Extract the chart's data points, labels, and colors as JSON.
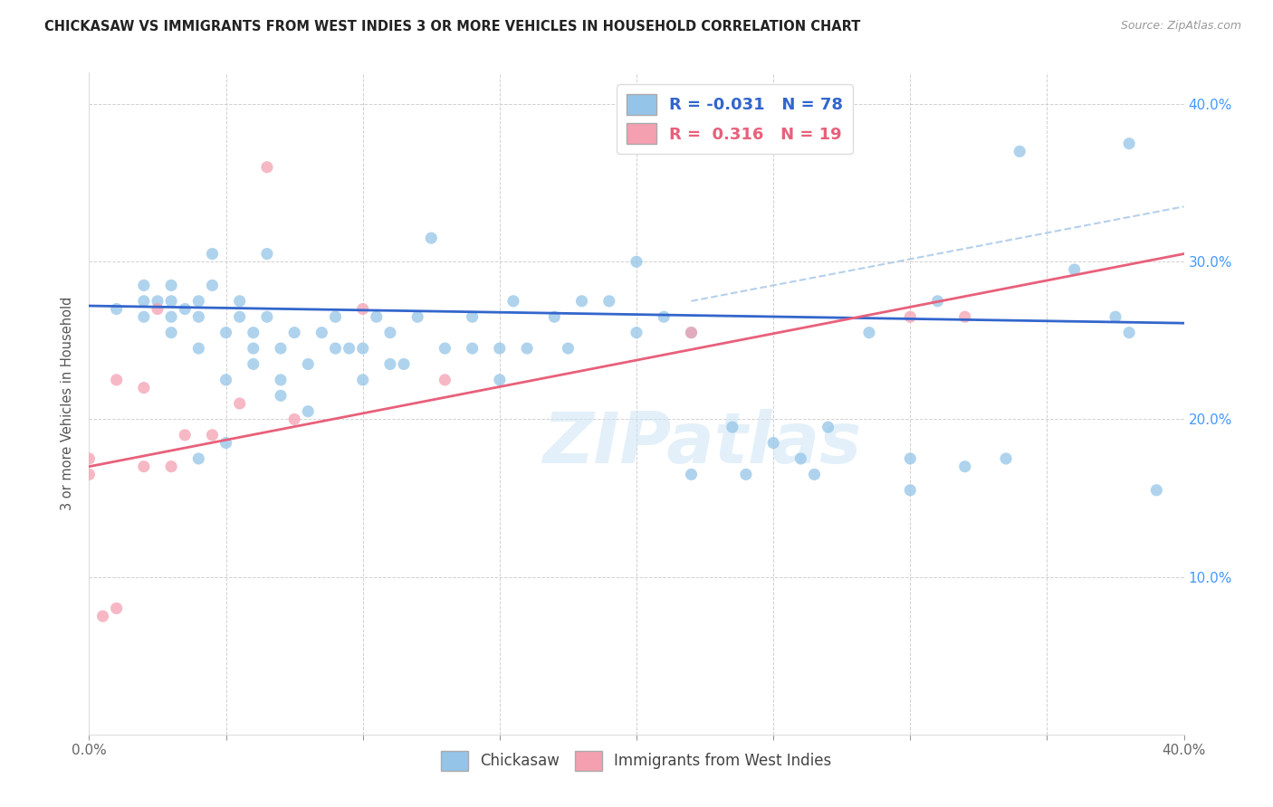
{
  "title": "CHICKASAW VS IMMIGRANTS FROM WEST INDIES 3 OR MORE VEHICLES IN HOUSEHOLD CORRELATION CHART",
  "source": "Source: ZipAtlas.com",
  "ylabel": "3 or more Vehicles in Household",
  "xlabel_chickasaw": "Chickasaw",
  "xlabel_west_indies": "Immigrants from West Indies",
  "watermark": "ZIPatlas",
  "xlim": [
    0.0,
    0.4
  ],
  "ylim": [
    0.0,
    0.42
  ],
  "x_ticks": [
    0.0,
    0.05,
    0.1,
    0.15,
    0.2,
    0.25,
    0.3,
    0.35,
    0.4
  ],
  "y_ticks": [
    0.0,
    0.1,
    0.2,
    0.3,
    0.4
  ],
  "R_chickasaw": -0.031,
  "N_chickasaw": 78,
  "R_west_indies": 0.316,
  "N_west_indies": 19,
  "color_chickasaw": "#94C5E8",
  "color_west_indies": "#F4A0B0",
  "color_line_chickasaw": "#3366CC",
  "color_line_west_indies": "#E8607A",
  "color_line_dashed": "#A8C8E8",
  "scatter_alpha": 0.75,
  "scatter_size": 90,
  "chickasaw_x": [
    0.01,
    0.02,
    0.02,
    0.02,
    0.025,
    0.03,
    0.03,
    0.03,
    0.03,
    0.035,
    0.04,
    0.04,
    0.04,
    0.04,
    0.045,
    0.045,
    0.05,
    0.05,
    0.05,
    0.055,
    0.055,
    0.06,
    0.06,
    0.06,
    0.065,
    0.065,
    0.07,
    0.07,
    0.07,
    0.075,
    0.08,
    0.08,
    0.085,
    0.09,
    0.09,
    0.095,
    0.1,
    0.1,
    0.105,
    0.11,
    0.11,
    0.115,
    0.12,
    0.125,
    0.13,
    0.14,
    0.14,
    0.15,
    0.15,
    0.155,
    0.16,
    0.17,
    0.175,
    0.18,
    0.19,
    0.2,
    0.21,
    0.22,
    0.235,
    0.25,
    0.265,
    0.27,
    0.285,
    0.3,
    0.31,
    0.335,
    0.36,
    0.375,
    0.38,
    0.39,
    0.2,
    0.22,
    0.24,
    0.26,
    0.3,
    0.32,
    0.34,
    0.38
  ],
  "chickasaw_y": [
    0.27,
    0.265,
    0.275,
    0.285,
    0.275,
    0.255,
    0.265,
    0.275,
    0.285,
    0.27,
    0.175,
    0.245,
    0.265,
    0.275,
    0.285,
    0.305,
    0.185,
    0.225,
    0.255,
    0.265,
    0.275,
    0.235,
    0.245,
    0.255,
    0.265,
    0.305,
    0.215,
    0.225,
    0.245,
    0.255,
    0.205,
    0.235,
    0.255,
    0.245,
    0.265,
    0.245,
    0.225,
    0.245,
    0.265,
    0.235,
    0.255,
    0.235,
    0.265,
    0.315,
    0.245,
    0.245,
    0.265,
    0.225,
    0.245,
    0.275,
    0.245,
    0.265,
    0.245,
    0.275,
    0.275,
    0.255,
    0.265,
    0.255,
    0.195,
    0.185,
    0.165,
    0.195,
    0.255,
    0.175,
    0.275,
    0.175,
    0.295,
    0.265,
    0.375,
    0.155,
    0.3,
    0.165,
    0.165,
    0.175,
    0.155,
    0.17,
    0.37,
    0.255
  ],
  "chickasaw_line_x": [
    0.0,
    0.4
  ],
  "chickasaw_line_y": [
    0.272,
    0.261
  ],
  "west_indies_line_x": [
    0.0,
    0.4
  ],
  "west_indies_line_y": [
    0.17,
    0.305
  ],
  "dashed_line_x": [
    0.22,
    0.4
  ],
  "dashed_line_y": [
    0.275,
    0.335
  ],
  "west_indies_x": [
    0.0,
    0.0,
    0.005,
    0.01,
    0.01,
    0.02,
    0.02,
    0.025,
    0.03,
    0.035,
    0.045,
    0.055,
    0.065,
    0.075,
    0.1,
    0.13,
    0.22,
    0.3,
    0.32
  ],
  "west_indies_y": [
    0.165,
    0.175,
    0.075,
    0.08,
    0.225,
    0.17,
    0.22,
    0.27,
    0.17,
    0.19,
    0.19,
    0.21,
    0.36,
    0.2,
    0.27,
    0.225,
    0.255,
    0.265,
    0.265
  ]
}
